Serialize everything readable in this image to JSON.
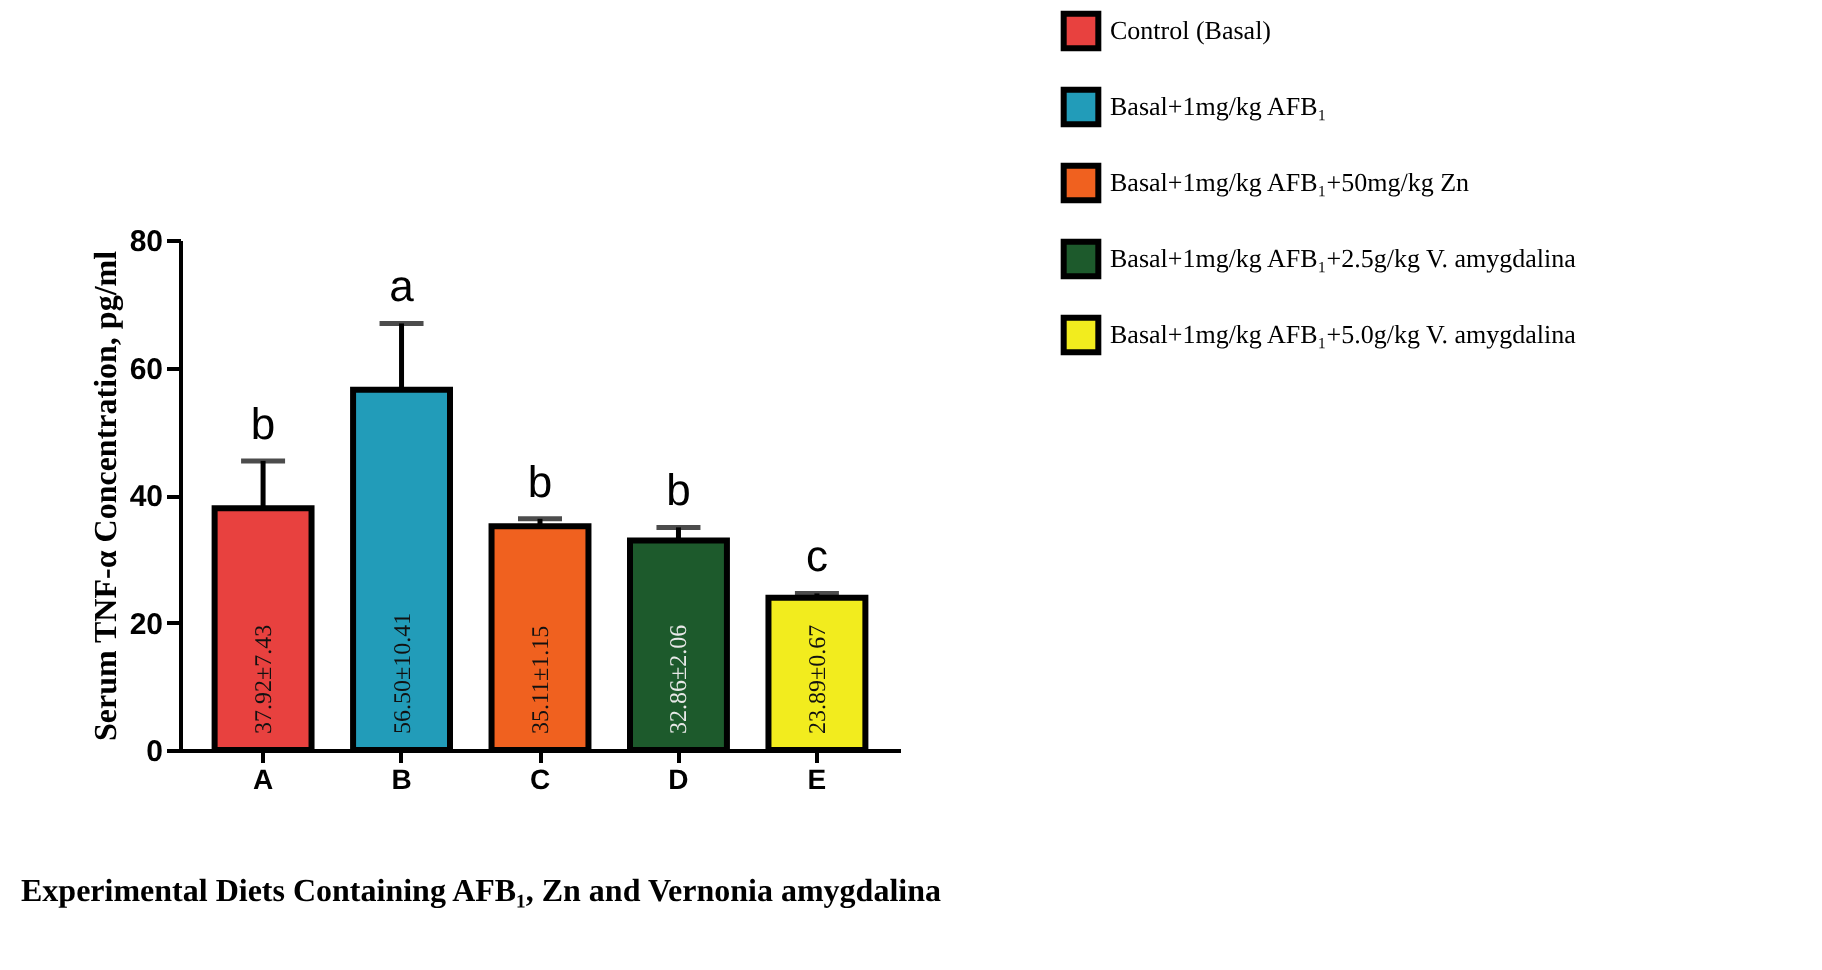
{
  "chart_data": {
    "type": "bar",
    "xlabel": "Experimental Diets Containing AFB₁, Zn and Vernonia amygdalina",
    "ylabel": "Serum TNF-α Concentration, pg/ml",
    "categories": [
      "A",
      "B",
      "C",
      "D",
      "E"
    ],
    "series": [
      {
        "name": "Control (Basal)",
        "color": "#e8413f",
        "values": [
          37.92,
          null,
          null,
          null,
          null
        ],
        "errors": [
          [
            37.92,
            45.35
          ],
          null,
          null,
          null,
          null
        ],
        "value_labels": [
          "37.92±7.43",
          null,
          null,
          null,
          null
        ]
      },
      {
        "name": "Basal+1mg/kg AFB₁",
        "color": "#229cb9",
        "values": [
          null,
          56.5,
          null,
          null,
          null
        ],
        "errors": [
          null,
          [
            56.5,
            66.91
          ],
          null,
          null,
          null
        ],
        "value_labels": [
          null,
          "56.50±10.41",
          null,
          null,
          null
        ]
      },
      {
        "name": "Basal+1mg/kg AFB₁+50mg/kg Zn",
        "color": "#f0611f",
        "values": [
          null,
          null,
          35.11,
          null,
          null
        ],
        "errors": [
          null,
          null,
          [
            35.11,
            36.26
          ],
          null,
          null
        ],
        "value_labels": [
          null,
          null,
          "35.11±1.15",
          null,
          null
        ]
      },
      {
        "name": "Basal+1mg/kg AFB₁+2.5g/kg V. amygdalina",
        "color": "#1d5a2c",
        "values": [
          null,
          null,
          null,
          32.86,
          null
        ],
        "errors": [
          null,
          null,
          null,
          [
            32.86,
            34.92
          ],
          null
        ],
        "value_labels": [
          null,
          null,
          null,
          "32.86±2.06",
          null
        ]
      },
      {
        "name": "Basal+1mg/kg AFB₁+5.0g/kg V. amygdalina",
        "color": "#f2ec1e",
        "values": [
          null,
          null,
          null,
          null,
          23.89
        ],
        "errors": [
          null,
          null,
          null,
          null,
          [
            23.89,
            24.56
          ]
        ],
        "value_labels": [
          null,
          null,
          null,
          null,
          "23.89±0.67"
        ]
      }
    ],
    "annotations": [
      {
        "text": "b",
        "x": "A",
        "y": 45.35
      },
      {
        "text": "a",
        "x": "B",
        "y": 66.91
      },
      {
        "text": "b",
        "x": "C",
        "y": 36.26
      },
      {
        "text": "b",
        "x": "D",
        "y": 34.92
      },
      {
        "text": "c",
        "x": "E",
        "y": 24.56
      }
    ],
    "ylim": [
      0,
      80
    ],
    "yticks": [
      0,
      20,
      40,
      60,
      80
    ],
    "grid": false,
    "legend": "top right"
  }
}
